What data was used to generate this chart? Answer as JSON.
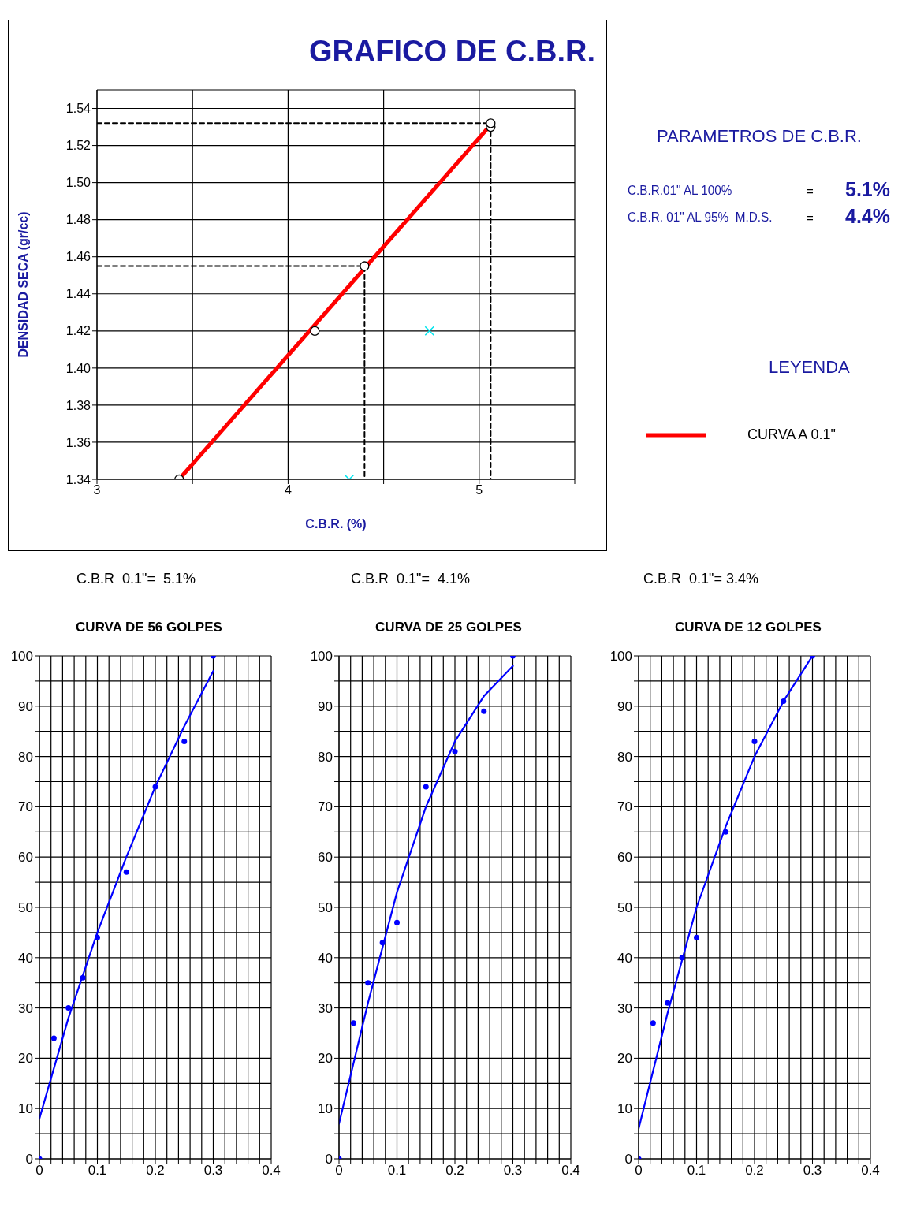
{
  "chart_data": [
    {
      "type": "scatter",
      "title": "GRAFICO DE C.B.R.",
      "xlabel": "C.B.R.  (%)",
      "ylabel": "DENSIDAD  SECA  (gr/cc)",
      "xlim": [
        3,
        5.5
      ],
      "xticks": [
        3,
        {
          "value": 3.5,
          "label": null
        },
        4,
        {
          "value": 4.5,
          "label": null
        },
        5,
        {
          "value": 5.5,
          "label": null
        }
      ],
      "ylim": [
        1.34,
        1.55
      ],
      "yticks": [
        1.34,
        1.36,
        1.38,
        {
          "value": 1.4,
          "label": "1.40"
        },
        1.42,
        1.44,
        1.46,
        1.48,
        {
          "value": 1.5,
          "label": "1.50"
        },
        1.52,
        1.54
      ],
      "grid": true,
      "legend": "right",
      "annotations": [
        "PARAMETROS DE C.B.R.",
        "C.B.R.01\" AL 100%",
        "=",
        "5.1%",
        "C.B.R. 01\" AL 95%  M.D.S.",
        "=",
        "4.4%",
        "LEYENDA"
      ],
      "series": [
        {
          "type": "line",
          "name": "CURVA A 0.1\"",
          "color": "#ff0000",
          "marker": "none",
          "line_style": "solid",
          "x": [
            3.43,
            5.05
          ],
          "values": [
            1.34,
            1.53
          ]
        },
        {
          "color": "#000000",
          "marker": "circle",
          "x": [
            3.43,
            4.14,
            4.4,
            5.06,
            5.06
          ],
          "values": [
            1.34,
            1.42,
            1.455,
            1.53,
            1.532
          ]
        },
        {
          "color": "#00e5ee",
          "marker": "cross",
          "x": [
            4.32,
            4.74
          ],
          "values": [
            1.34,
            1.42
          ]
        },
        {
          "type": "line",
          "color": "#000000",
          "marker": "none",
          "line_style": "dashed",
          "x": [
            3,
            5.06,
            5.06
          ],
          "values": [
            1.532,
            1.532,
            1.34
          ]
        },
        {
          "type": "line",
          "color": "#000000",
          "marker": "none",
          "line_style": "dashed",
          "x": [
            3,
            4.4,
            4.4
          ],
          "values": [
            1.455,
            1.455,
            1.34
          ]
        }
      ]
    },
    {
      "type": "scatter",
      "title": "CURVA  DE 56 GOLPES",
      "annotations": [
        "C.B.R  0.1\"=  5.1%"
      ],
      "xlim": [
        0,
        0.4
      ],
      "xticks": [
        0,
        {
          "value": 0.02,
          "label": null
        },
        {
          "value": 0.04,
          "label": null
        },
        {
          "value": 0.06,
          "label": null
        },
        {
          "value": 0.08,
          "label": null
        },
        0.1,
        {
          "value": 0.12,
          "label": null
        },
        {
          "value": 0.14,
          "label": null
        },
        {
          "value": 0.16,
          "label": null
        },
        {
          "value": 0.18,
          "label": null
        },
        0.2,
        {
          "value": 0.22,
          "label": null
        },
        {
          "value": 0.24,
          "label": null
        },
        {
          "value": 0.26,
          "label": null
        },
        {
          "value": 0.28,
          "label": null
        },
        0.3,
        {
          "value": 0.32,
          "label": null
        },
        {
          "value": 0.34,
          "label": null
        },
        {
          "value": 0.36,
          "label": null
        },
        {
          "value": 0.38,
          "label": null
        },
        0.4
      ],
      "ylim": [
        0,
        100
      ],
      "yticks": [
        0,
        {
          "value": 5,
          "label": null
        },
        10,
        {
          "value": 15,
          "label": null
        },
        20,
        {
          "value": 25,
          "label": null
        },
        30,
        {
          "value": 35,
          "label": null
        },
        40,
        {
          "value": 45,
          "label": null
        },
        50,
        {
          "value": 55,
          "label": null
        },
        60,
        {
          "value": 65,
          "label": null
        },
        70,
        {
          "value": 75,
          "label": null
        },
        80,
        {
          "value": 85,
          "label": null
        },
        90,
        {
          "value": 95,
          "label": null
        },
        100
      ],
      "grid": true,
      "series": [
        {
          "color": "#0000ff",
          "marker": "circle",
          "x": [
            0,
            0.025,
            0.05,
            0.075,
            0.1,
            0.15,
            0.2,
            0.25,
            0.3
          ],
          "values": [
            0,
            24,
            30,
            36,
            44,
            57,
            74,
            83,
            100
          ]
        },
        {
          "type": "line",
          "color": "#0000ff",
          "marker": "none",
          "line_style": "solid",
          "x": [
            0,
            0.05,
            0.1,
            0.15,
            0.2,
            0.25,
            0.3
          ],
          "values": [
            8,
            28,
            45,
            60,
            74,
            86,
            97
          ]
        }
      ]
    },
    {
      "type": "scatter",
      "title": "CURVA  DE 25 GOLPES",
      "annotations": [
        "C.B.R  0.1\"=  4.1%"
      ],
      "xlim": [
        0,
        0.4
      ],
      "xticks": [
        0,
        {
          "value": 0.02,
          "label": null
        },
        {
          "value": 0.04,
          "label": null
        },
        {
          "value": 0.06,
          "label": null
        },
        {
          "value": 0.08,
          "label": null
        },
        0.1,
        {
          "value": 0.12,
          "label": null
        },
        {
          "value": 0.14,
          "label": null
        },
        {
          "value": 0.16,
          "label": null
        },
        {
          "value": 0.18,
          "label": null
        },
        0.2,
        {
          "value": 0.22,
          "label": null
        },
        {
          "value": 0.24,
          "label": null
        },
        {
          "value": 0.26,
          "label": null
        },
        {
          "value": 0.28,
          "label": null
        },
        0.3,
        {
          "value": 0.32,
          "label": null
        },
        {
          "value": 0.34,
          "label": null
        },
        {
          "value": 0.36,
          "label": null
        },
        {
          "value": 0.38,
          "label": null
        },
        0.4
      ],
      "ylim": [
        0,
        100
      ],
      "yticks": [
        0,
        {
          "value": 5,
          "label": null
        },
        10,
        {
          "value": 15,
          "label": null
        },
        20,
        {
          "value": 25,
          "label": null
        },
        30,
        {
          "value": 35,
          "label": null
        },
        40,
        {
          "value": 45,
          "label": null
        },
        50,
        {
          "value": 55,
          "label": null
        },
        60,
        {
          "value": 65,
          "label": null
        },
        70,
        {
          "value": 75,
          "label": null
        },
        80,
        {
          "value": 85,
          "label": null
        },
        90,
        {
          "value": 95,
          "label": null
        },
        100
      ],
      "grid": true,
      "series": [
        {
          "color": "#0000ff",
          "marker": "circle",
          "x": [
            0,
            0.025,
            0.05,
            0.075,
            0.1,
            0.15,
            0.2,
            0.25,
            0.3
          ],
          "values": [
            0,
            27,
            35,
            43,
            47,
            74,
            81,
            89,
            100
          ]
        },
        {
          "type": "line",
          "color": "#0000ff",
          "marker": "none",
          "line_style": "solid",
          "x": [
            0,
            0.05,
            0.1,
            0.15,
            0.2,
            0.25,
            0.3
          ],
          "values": [
            7,
            31,
            53,
            70,
            83,
            92,
            98
          ]
        }
      ]
    },
    {
      "type": "scatter",
      "title": "CURVA  DE 12 GOLPES",
      "annotations": [
        "C.B.R  0.1\"= 3.4%"
      ],
      "xlim": [
        0,
        0.4
      ],
      "xticks": [
        0,
        {
          "value": 0.02,
          "label": null
        },
        {
          "value": 0.04,
          "label": null
        },
        {
          "value": 0.06,
          "label": null
        },
        {
          "value": 0.08,
          "label": null
        },
        0.1,
        {
          "value": 0.12,
          "label": null
        },
        {
          "value": 0.14,
          "label": null
        },
        {
          "value": 0.16,
          "label": null
        },
        {
          "value": 0.18,
          "label": null
        },
        0.2,
        {
          "value": 0.22,
          "label": null
        },
        {
          "value": 0.24,
          "label": null
        },
        {
          "value": 0.26,
          "label": null
        },
        {
          "value": 0.28,
          "label": null
        },
        0.3,
        {
          "value": 0.32,
          "label": null
        },
        {
          "value": 0.34,
          "label": null
        },
        {
          "value": 0.36,
          "label": null
        },
        {
          "value": 0.38,
          "label": null
        },
        0.4
      ],
      "ylim": [
        0,
        100
      ],
      "yticks": [
        0,
        {
          "value": 5,
          "label": null
        },
        10,
        {
          "value": 15,
          "label": null
        },
        20,
        {
          "value": 25,
          "label": null
        },
        30,
        {
          "value": 35,
          "label": null
        },
        40,
        {
          "value": 45,
          "label": null
        },
        50,
        {
          "value": 55,
          "label": null
        },
        60,
        {
          "value": 65,
          "label": null
        },
        70,
        {
          "value": 75,
          "label": null
        },
        80,
        {
          "value": 85,
          "label": null
        },
        90,
        {
          "value": 95,
          "label": null
        },
        100
      ],
      "grid": true,
      "series": [
        {
          "color": "#0000ff",
          "marker": "circle",
          "x": [
            0,
            0.025,
            0.05,
            0.075,
            0.1,
            0.15,
            0.2,
            0.25,
            0.3
          ],
          "values": [
            0,
            27,
            31,
            40,
            44,
            65,
            83,
            91,
            100
          ]
        },
        {
          "type": "line",
          "color": "#0000ff",
          "marker": "none",
          "line_style": "solid",
          "x": [
            0,
            0.05,
            0.1,
            0.15,
            0.2,
            0.25,
            0.3
          ],
          "values": [
            6,
            29,
            50,
            66,
            80,
            91,
            100
          ]
        }
      ]
    }
  ]
}
